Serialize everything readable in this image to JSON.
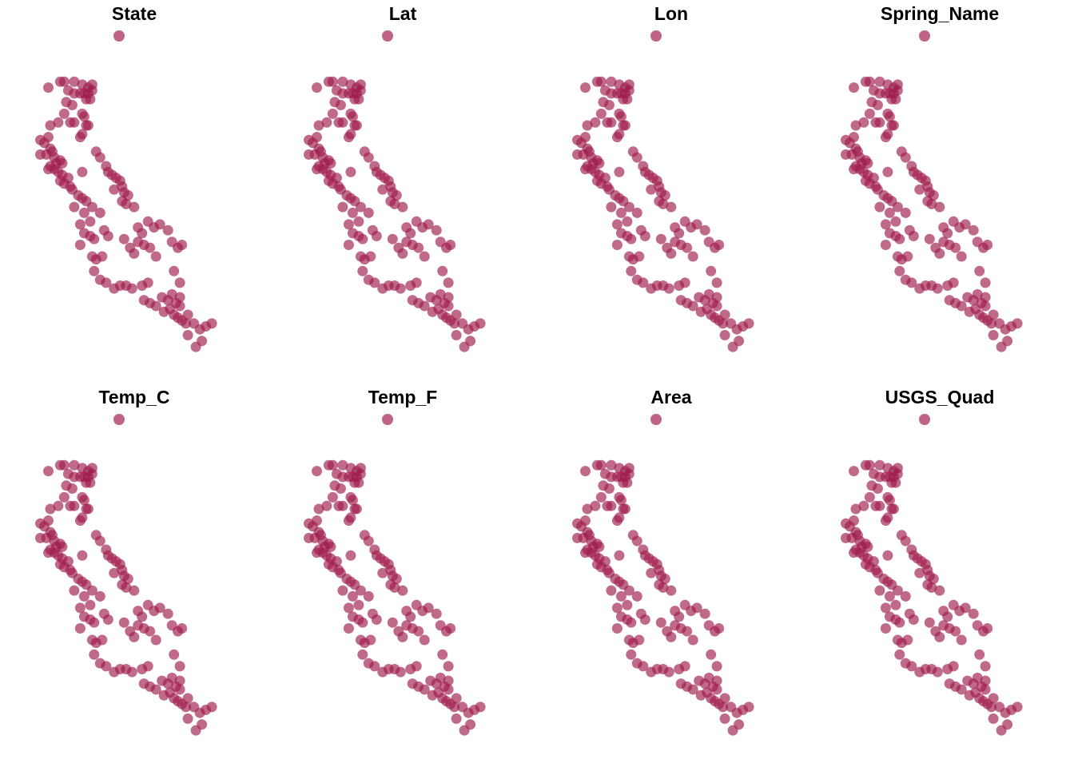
{
  "colors": {
    "point": "#9e1a4b"
  },
  "chart_data": {
    "type": "scatter",
    "layout": "small-multiples",
    "panels": [
      {
        "title": "State"
      },
      {
        "title": "Lat"
      },
      {
        "title": "Lon"
      },
      {
        "title": "Spring_Name"
      },
      {
        "title": "Temp_C"
      },
      {
        "title": "Temp_F"
      },
      {
        "title": "Area"
      },
      {
        "title": "USGS_Quad"
      }
    ],
    "xlim": [
      -124.5,
      -114.0
    ],
    "ylim": [
      32.5,
      42.1
    ],
    "legend": {
      "marker": "circle",
      "placement": "top-center"
    },
    "points": [
      [
        -123.6,
        41.7
      ],
      [
        -123.0,
        41.9
      ],
      [
        -122.8,
        41.9
      ],
      [
        -122.3,
        41.9
      ],
      [
        -121.9,
        41.8
      ],
      [
        -121.6,
        41.7
      ],
      [
        -121.4,
        41.8
      ],
      [
        -122.6,
        41.6
      ],
      [
        -122.3,
        41.5
      ],
      [
        -122.0,
        41.5
      ],
      [
        -121.8,
        41.5
      ],
      [
        -121.6,
        41.5
      ],
      [
        -121.4,
        41.6
      ],
      [
        -121.7,
        41.3
      ],
      [
        -121.5,
        41.3
      ],
      [
        -122.7,
        41.2
      ],
      [
        -122.4,
        41.1
      ],
      [
        -122.8,
        40.8
      ],
      [
        -121.9,
        40.8
      ],
      [
        -121.8,
        40.7
      ],
      [
        -122.3,
        40.5
      ],
      [
        -122.5,
        40.5
      ],
      [
        -121.7,
        40.4
      ],
      [
        -123.5,
        40.4
      ],
      [
        -123.1,
        40.5
      ],
      [
        -121.6,
        40.4
      ],
      [
        -121.9,
        40.1
      ],
      [
        -124.0,
        39.9
      ],
      [
        -123.8,
        39.8
      ],
      [
        -123.5,
        39.6
      ],
      [
        -123.4,
        39.5
      ],
      [
        -123.7,
        39.4
      ],
      [
        -123.3,
        39.3
      ],
      [
        -123.0,
        39.2
      ],
      [
        -122.9,
        39.1
      ],
      [
        -123.2,
        39.1
      ],
      [
        -123.5,
        39.0
      ],
      [
        -123.3,
        38.9
      ],
      [
        -123.1,
        38.8
      ],
      [
        -122.9,
        38.7
      ],
      [
        -122.6,
        38.6
      ],
      [
        -123.0,
        38.5
      ],
      [
        -122.8,
        38.4
      ],
      [
        -122.5,
        38.3
      ],
      [
        -122.4,
        38.2
      ],
      [
        -122.1,
        38.0
      ],
      [
        -124.0,
        39.4
      ],
      [
        -123.6,
        38.9
      ],
      [
        -121.2,
        39.5
      ],
      [
        -121.0,
        39.3
      ],
      [
        -120.7,
        39.0
      ],
      [
        -120.6,
        38.8
      ],
      [
        -120.4,
        38.7
      ],
      [
        -120.2,
        38.6
      ],
      [
        -120.0,
        38.5
      ],
      [
        -119.9,
        38.3
      ],
      [
        -120.3,
        38.2
      ],
      [
        -119.8,
        38.1
      ],
      [
        -119.6,
        38.0
      ],
      [
        -119.9,
        37.8
      ],
      [
        -119.7,
        37.7
      ],
      [
        -119.3,
        37.6
      ],
      [
        -121.9,
        38.8
      ],
      [
        -121.9,
        37.9
      ],
      [
        -121.7,
        37.8
      ],
      [
        -121.4,
        37.6
      ],
      [
        -121.0,
        37.4
      ],
      [
        -121.8,
        37.4
      ],
      [
        -121.5,
        37.1
      ],
      [
        -122.0,
        37.0
      ],
      [
        -121.8,
        36.7
      ],
      [
        -121.5,
        36.6
      ],
      [
        -121.3,
        36.5
      ],
      [
        -120.8,
        36.8
      ],
      [
        -120.6,
        36.6
      ],
      [
        -119.1,
        36.9
      ],
      [
        -118.9,
        36.7
      ],
      [
        -118.6,
        37.1
      ],
      [
        -118.3,
        36.9
      ],
      [
        -118.0,
        37.0
      ],
      [
        -117.6,
        36.8
      ],
      [
        -117.4,
        36.4
      ],
      [
        -117.1,
        36.2
      ],
      [
        -116.9,
        36.3
      ],
      [
        -119.8,
        36.5
      ],
      [
        -119.5,
        36.2
      ],
      [
        -119.3,
        36.0
      ],
      [
        -119.1,
        36.4
      ],
      [
        -118.8,
        36.3
      ],
      [
        -118.5,
        36.2
      ],
      [
        -118.2,
        35.9
      ],
      [
        -117.3,
        35.4
      ],
      [
        -117.0,
        35.0
      ],
      [
        -122.0,
        36.3
      ],
      [
        -121.4,
        35.9
      ],
      [
        -121.2,
        35.8
      ],
      [
        -120.9,
        35.9
      ],
      [
        -121.3,
        35.4
      ],
      [
        -121.0,
        35.1
      ],
      [
        -120.7,
        35.0
      ],
      [
        -120.3,
        34.8
      ],
      [
        -120.0,
        34.9
      ],
      [
        -119.7,
        34.9
      ],
      [
        -119.4,
        34.8
      ],
      [
        -118.9,
        34.9
      ],
      [
        -118.6,
        35.0
      ],
      [
        -118.8,
        34.4
      ],
      [
        -118.5,
        34.3
      ],
      [
        -118.2,
        34.2
      ],
      [
        -117.9,
        34.5
      ],
      [
        -117.6,
        34.4
      ],
      [
        -117.4,
        34.6
      ],
      [
        -117.2,
        34.3
      ],
      [
        -117.0,
        34.2
      ],
      [
        -117.5,
        34.1
      ],
      [
        -117.8,
        34.0
      ],
      [
        -117.3,
        33.9
      ],
      [
        -117.1,
        33.8
      ],
      [
        -116.9,
        33.7
      ],
      [
        -116.6,
        33.9
      ],
      [
        -116.3,
        33.6
      ],
      [
        -116.0,
        33.4
      ],
      [
        -115.7,
        33.5
      ],
      [
        -115.4,
        33.6
      ],
      [
        -115.9,
        33.0
      ],
      [
        -116.6,
        33.2
      ],
      [
        -116.2,
        32.8
      ],
      [
        -116.7,
        33.6
      ],
      [
        -117.0,
        34.5
      ],
      [
        -122.3,
        37.6
      ],
      [
        -123.6,
        40.0
      ],
      [
        -122.0,
        40.0
      ]
    ]
  }
}
